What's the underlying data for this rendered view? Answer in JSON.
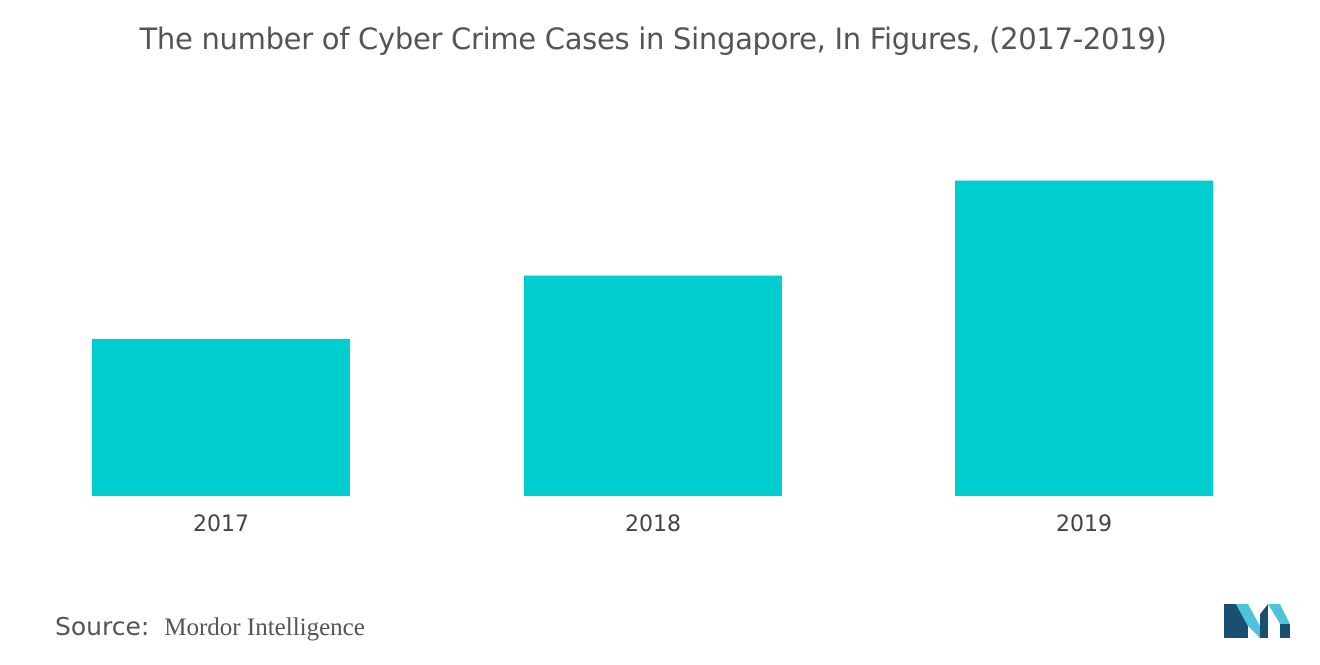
{
  "title": "The number of Cyber Crime Cases in Singapore, In Figures, (2017-2019)",
  "source": {
    "label": "Source:",
    "value": "Mordor Intelligence"
  },
  "colors": {
    "bar": "#00CED1",
    "text": "#555555",
    "logo_dark": "#1B4F72",
    "logo_light": "#4FC3D9"
  },
  "logo": {
    "icon": "mordor-intelligence-logo-icon"
  },
  "chart_data": {
    "type": "bar",
    "categories": [
      "2017",
      "2018",
      "2019"
    ],
    "values": [
      2480,
      3480,
      4980
    ],
    "title": "The number of Cyber Crime Cases in Singapore, In Figures, (2017-2019)",
    "xlabel": "",
    "ylabel": "",
    "ylim": [
      0,
      6000
    ],
    "grid": false,
    "legend": "none"
  }
}
